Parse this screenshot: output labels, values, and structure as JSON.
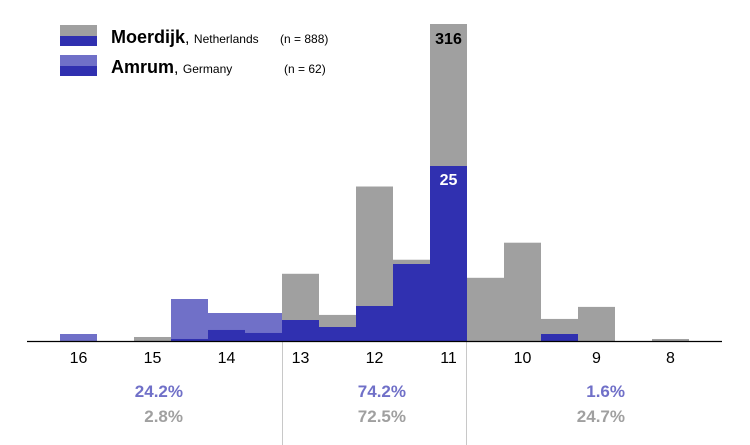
{
  "chart_data": {
    "type": "bar",
    "title": "",
    "xlabel": "",
    "ylabel": "",
    "x_bins": [
      16,
      15.5,
      15,
      14.5,
      14,
      13.5,
      13,
      12.5,
      12,
      11.5,
      11,
      10.5,
      10,
      9.5,
      9,
      8.5,
      8
    ],
    "tick_labels": [
      "16",
      "15",
      "14",
      "13",
      "12",
      "11",
      "10",
      "9",
      "8"
    ],
    "series": [
      {
        "name": "Moerdijk",
        "region": "Netherlands",
        "n_label": "(n = 888)",
        "values": [
          0,
          0,
          4,
          2,
          11,
          8,
          67,
          26,
          154,
          81,
          316,
          63,
          98,
          22,
          34,
          0,
          2
        ]
      },
      {
        "name": "Amrum",
        "region": "Germany",
        "n_label": "(n = 62)",
        "values": [
          1,
          0,
          0,
          6,
          4,
          4,
          3,
          2,
          5,
          11,
          25,
          0,
          0,
          1,
          0,
          0,
          0
        ]
      }
    ],
    "data_labels": {
      "moerdijk_peak": "316",
      "amrum_peak": "25"
    },
    "group_percentages": [
      {
        "amrum": "24.2%",
        "moerdijk": "2.8%"
      },
      {
        "amrum": "74.2%",
        "moerdijk": "72.5%"
      },
      {
        "amrum": "1.6%",
        "moerdijk": "24.7%"
      }
    ],
    "colors": {
      "moerdijk": "#a0a0a0",
      "amrum": "#7070c8",
      "overlap": "#3030b0",
      "axis": "#000000",
      "divider": "#c8c8c8"
    },
    "legend_position": "top-left"
  }
}
